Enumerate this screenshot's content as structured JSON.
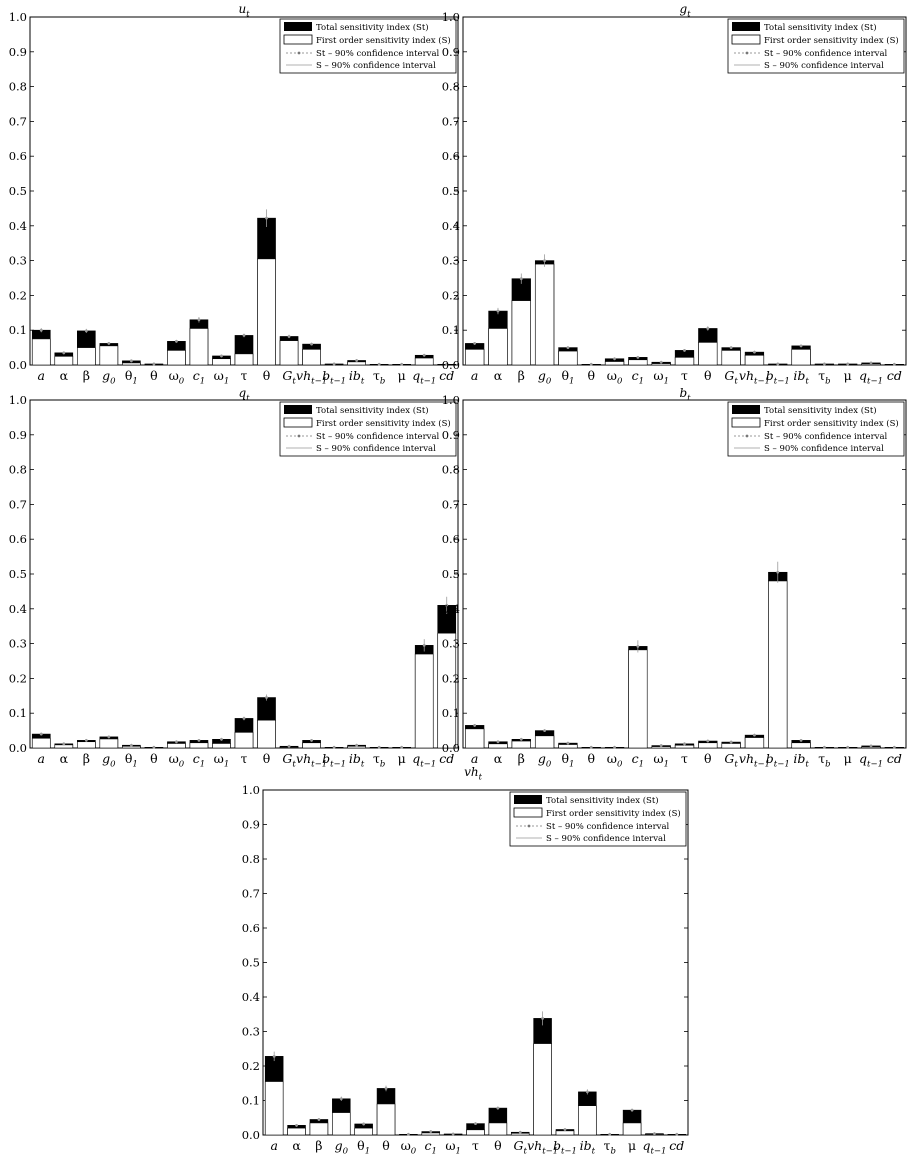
{
  "legend": {
    "total": "Total sensitivity index (St)",
    "first": "First order sensitivity index (S)",
    "st_ci": "St – 90% confidence interval",
    "s_ci": "S – 90% confidence interval"
  },
  "chart_data": [
    {
      "type": "bar",
      "title": "u_t",
      "ylim": [
        0,
        1
      ],
      "yticks": [
        "0.0",
        "0.1",
        "0.2",
        "0.3",
        "0.4",
        "0.5",
        "0.6",
        "0.7",
        "0.8",
        "0.9",
        "1.0"
      ],
      "legend_position": "top-right",
      "categories": [
        "a",
        "α",
        "β",
        "g_0",
        "θ_1",
        "θ",
        "ω_0",
        "c_1",
        "ω_1",
        "τ",
        "θ",
        "G_t",
        "vh_{t-1}",
        "b_{t-1}",
        "ib_t",
        "τ_b",
        "μ",
        "q_{t-1}",
        "cd"
      ],
      "series": [
        {
          "name": "Total sensitivity index (St)",
          "values": [
            0.1,
            0.035,
            0.098,
            0.062,
            0.012,
            0.003,
            0.068,
            0.13,
            0.026,
            0.085,
            0.422,
            0.082,
            0.06,
            0.003,
            0.013,
            0.002,
            0.002,
            0.028,
            0.002
          ]
        },
        {
          "name": "First order sensitivity index (S)",
          "values": [
            0.075,
            0.025,
            0.05,
            0.055,
            0.006,
            0.001,
            0.042,
            0.105,
            0.018,
            0.032,
            0.305,
            0.07,
            0.045,
            0.001,
            0.009,
            0.001,
            0.001,
            0.02,
            0.001
          ]
        }
      ]
    },
    {
      "type": "bar",
      "title": "g_t",
      "ylim": [
        0,
        1
      ],
      "yticks": [
        "0.0",
        "0.1",
        "0.2",
        "0.3",
        "0.4",
        "0.5",
        "0.6",
        "0.7",
        "0.8",
        "0.9",
        "1.0"
      ],
      "legend_position": "top-right",
      "categories": [
        "a",
        "α",
        "β",
        "g_0",
        "θ_1",
        "θ",
        "ω_0",
        "c_1",
        "ω_1",
        "τ",
        "θ",
        "G_t",
        "vh_{t-1}",
        "b_{t-1}",
        "ib_t",
        "τ_b",
        "μ",
        "q_{t-1}",
        "cd"
      ],
      "series": [
        {
          "name": "Total sensitivity index (St)",
          "values": [
            0.062,
            0.155,
            0.248,
            0.3,
            0.05,
            0.002,
            0.018,
            0.022,
            0.008,
            0.042,
            0.105,
            0.05,
            0.037,
            0.003,
            0.055,
            0.003,
            0.003,
            0.006,
            0.002
          ]
        },
        {
          "name": "First order sensitivity index (S)",
          "values": [
            0.045,
            0.105,
            0.185,
            0.29,
            0.04,
            0.001,
            0.01,
            0.015,
            0.004,
            0.022,
            0.065,
            0.042,
            0.028,
            0.001,
            0.045,
            0.001,
            0.001,
            0.003,
            0.001
          ]
        }
      ]
    },
    {
      "type": "bar",
      "title": "q_t",
      "ylim": [
        0,
        1
      ],
      "yticks": [
        "0.0",
        "0.1",
        "0.2",
        "0.3",
        "0.4",
        "0.5",
        "0.6",
        "0.7",
        "0.8",
        "0.9",
        "1.0"
      ],
      "legend_position": "top-right",
      "categories": [
        "a",
        "α",
        "β",
        "g_0",
        "θ_1",
        "θ",
        "ω_0",
        "c_1",
        "ω_1",
        "τ",
        "θ",
        "G_t",
        "vh_{t-1}",
        "b_{t-1}",
        "ib_t",
        "τ_b",
        "μ",
        "q_{t-1}",
        "cd"
      ],
      "series": [
        {
          "name": "Total sensitivity index (St)",
          "values": [
            0.04,
            0.012,
            0.022,
            0.032,
            0.008,
            0.002,
            0.018,
            0.022,
            0.025,
            0.085,
            0.145,
            0.005,
            0.022,
            0.002,
            0.008,
            0.002,
            0.002,
            0.295,
            0.41
          ]
        },
        {
          "name": "First order sensitivity index (S)",
          "values": [
            0.028,
            0.009,
            0.018,
            0.026,
            0.005,
            0.001,
            0.013,
            0.015,
            0.013,
            0.045,
            0.08,
            0.002,
            0.015,
            0.001,
            0.005,
            0.001,
            0.001,
            0.27,
            0.33
          ]
        }
      ]
    },
    {
      "type": "bar",
      "title": "b_t",
      "ylim": [
        0,
        1
      ],
      "yticks": [
        "0.0",
        "0.1",
        "0.2",
        "0.3",
        "0.4",
        "0.5",
        "0.6",
        "0.7",
        "0.8",
        "0.9",
        "1.0"
      ],
      "legend_position": "top-right",
      "categories": [
        "a",
        "α",
        "β",
        "g_0",
        "θ_1",
        "θ",
        "ω_0",
        "c_1",
        "ω_1",
        "τ",
        "θ",
        "G_t",
        "vh_{t-1}",
        "b_{t-1}",
        "ib_t",
        "τ_b",
        "μ",
        "q_{t-1}",
        "cd"
      ],
      "series": [
        {
          "name": "Total sensitivity index (St)",
          "values": [
            0.065,
            0.018,
            0.025,
            0.05,
            0.014,
            0.002,
            0.002,
            0.292,
            0.007,
            0.012,
            0.02,
            0.017,
            0.037,
            0.505,
            0.022,
            0.002,
            0.002,
            0.006,
            0.002
          ]
        },
        {
          "name": "First order sensitivity index (S)",
          "values": [
            0.055,
            0.012,
            0.02,
            0.035,
            0.01,
            0.001,
            0.001,
            0.282,
            0.004,
            0.008,
            0.015,
            0.013,
            0.03,
            0.48,
            0.015,
            0.001,
            0.001,
            0.003,
            0.001
          ]
        }
      ]
    },
    {
      "type": "bar",
      "title": "vh_t",
      "ylim": [
        0,
        1
      ],
      "yticks": [
        "0.0",
        "0.1",
        "0.2",
        "0.3",
        "0.4",
        "0.5",
        "0.6",
        "0.7",
        "0.8",
        "0.9",
        "1.0"
      ],
      "legend_position": "top-right",
      "categories": [
        "a",
        "α",
        "β",
        "g_0",
        "θ_1",
        "θ",
        "ω_0",
        "c_1",
        "ω_1",
        "τ",
        "θ",
        "G_t",
        "vh_{t-1}",
        "b_{t-1}",
        "ib_t",
        "τ_b",
        "μ",
        "q_{t-1}",
        "cd"
      ],
      "series": [
        {
          "name": "Total sensitivity index (St)",
          "values": [
            0.228,
            0.028,
            0.045,
            0.105,
            0.032,
            0.135,
            0.002,
            0.01,
            0.003,
            0.033,
            0.078,
            0.008,
            0.338,
            0.016,
            0.125,
            0.002,
            0.072,
            0.004,
            0.002
          ]
        },
        {
          "name": "First order sensitivity index (S)",
          "values": [
            0.155,
            0.02,
            0.035,
            0.065,
            0.02,
            0.09,
            0.001,
            0.006,
            0.001,
            0.015,
            0.035,
            0.005,
            0.265,
            0.012,
            0.085,
            0.001,
            0.035,
            0.002,
            0.001
          ]
        }
      ]
    }
  ]
}
